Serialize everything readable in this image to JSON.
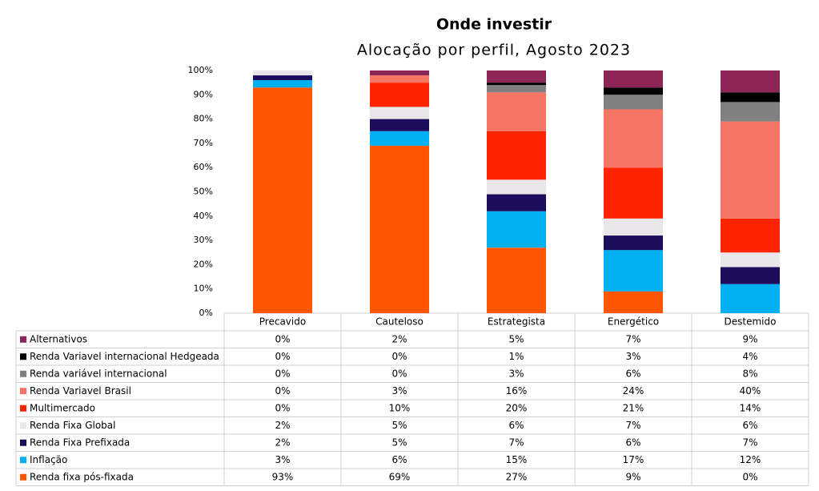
{
  "chart_data": {
    "type": "stacked_bar",
    "title": "Onde investir",
    "subtitle": "Alocação por perfil, Agosto 2023",
    "categories": [
      "Precavido",
      "Cauteloso",
      "Estrategista",
      "Energético",
      "Destemido"
    ],
    "ylim": [
      0,
      100
    ],
    "yticks": [
      {
        "value": 0,
        "label": "0%"
      },
      {
        "value": 10,
        "label": "10%"
      },
      {
        "value": 20,
        "label": "20%"
      },
      {
        "value": 30,
        "label": "30%"
      },
      {
        "value": 40,
        "label": "40%"
      },
      {
        "value": 50,
        "label": "50%"
      },
      {
        "value": 60,
        "label": "60%"
      },
      {
        "value": 70,
        "label": "70%"
      },
      {
        "value": 80,
        "label": "80%"
      },
      {
        "value": 90,
        "label": "90%"
      },
      {
        "value": 100,
        "label": "100%"
      }
    ],
    "grid": false,
    "series": [
      {
        "name": "Renda fixa pós-fixada",
        "color": "#ff5500",
        "values": [
          93,
          69,
          27,
          9,
          0
        ],
        "value_labels": [
          "93%",
          "69%",
          "27%",
          "9%",
          "0%"
        ]
      },
      {
        "name": "Inflação",
        "color": "#00b0f0",
        "values": [
          3,
          6,
          15,
          17,
          12
        ],
        "value_labels": [
          "3%",
          "6%",
          "15%",
          "17%",
          "12%"
        ]
      },
      {
        "name": "Renda Fixa Prefixada",
        "color": "#1c0c5e",
        "values": [
          2,
          5,
          7,
          6,
          7
        ],
        "value_labels": [
          "2%",
          "5%",
          "7%",
          "6%",
          "7%"
        ]
      },
      {
        "name": "Renda Fixa Global",
        "color": "#e8e6e8",
        "values": [
          2,
          5,
          6,
          7,
          6
        ],
        "value_labels": [
          "2%",
          "5%",
          "6%",
          "7%",
          "6%"
        ]
      },
      {
        "name": "Multimercado",
        "color": "#ff2400",
        "values": [
          0,
          10,
          20,
          21,
          14
        ],
        "value_labels": [
          "0%",
          "10%",
          "20%",
          "21%",
          "14%"
        ]
      },
      {
        "name": "Renda Variavel Brasil",
        "color": "#f47564",
        "values": [
          0,
          3,
          16,
          24,
          40
        ],
        "value_labels": [
          "0%",
          "3%",
          "16%",
          "24%",
          "40%"
        ]
      },
      {
        "name": "Renda variável internacional",
        "color": "#808080",
        "values": [
          0,
          0,
          3,
          6,
          8
        ],
        "value_labels": [
          "0%",
          "0%",
          "3%",
          "6%",
          "8%"
        ]
      },
      {
        "name": "Renda Variavel internacional Hedgeada",
        "color": "#000000",
        "values": [
          0,
          0,
          1,
          3,
          4
        ],
        "value_labels": [
          "0%",
          "0%",
          "1%",
          "3%",
          "4%"
        ]
      },
      {
        "name": "Alternativos",
        "color": "#8e2557",
        "values": [
          0,
          2,
          5,
          7,
          9
        ],
        "value_labels": [
          "0%",
          "2%",
          "5%",
          "7%",
          "9%"
        ]
      }
    ]
  }
}
